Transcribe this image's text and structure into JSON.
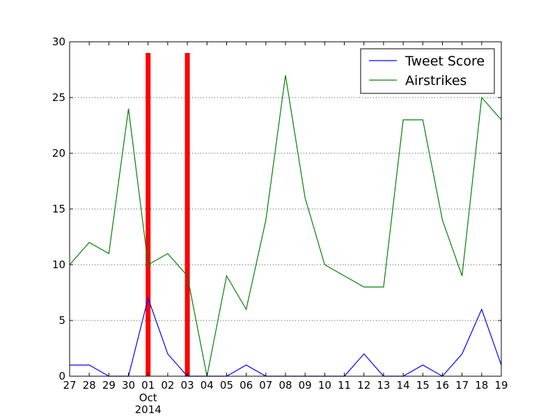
{
  "chart_data": {
    "type": "line",
    "title": "",
    "xlabel": "",
    "ylabel": "",
    "ylim": [
      0,
      30
    ],
    "yticks": [
      0,
      5,
      10,
      15,
      20,
      25,
      30
    ],
    "categories": [
      "27",
      "28",
      "29",
      "30",
      "01",
      "02",
      "03",
      "04",
      "05",
      "06",
      "07",
      "08",
      "09",
      "10",
      "11",
      "12",
      "13",
      "14",
      "15",
      "16",
      "17",
      "18",
      "19"
    ],
    "x_secondary_labels": {
      "01": "Oct\n2014"
    },
    "grid": "y-dotted",
    "legend_position": "top-right",
    "series": [
      {
        "name": "Tweet Score",
        "color": "#0000ff",
        "values": [
          1,
          1,
          0,
          0,
          7,
          2,
          0,
          0,
          0,
          1,
          0,
          0,
          0,
          0,
          0,
          2,
          0,
          0,
          1,
          0,
          2,
          6,
          1
        ]
      },
      {
        "name": "Airstrikes",
        "color": "#008000",
        "values": [
          10,
          12,
          11,
          24,
          10,
          11,
          9,
          0,
          9,
          6,
          14,
          27,
          16,
          10,
          9,
          8,
          8,
          23,
          23,
          14,
          9,
          25,
          23
        ]
      }
    ],
    "vertical_markers": [
      {
        "x": "01",
        "height": 29,
        "color": "#ff0000"
      },
      {
        "x": "03",
        "height": 29,
        "color": "#ff0000"
      }
    ]
  }
}
